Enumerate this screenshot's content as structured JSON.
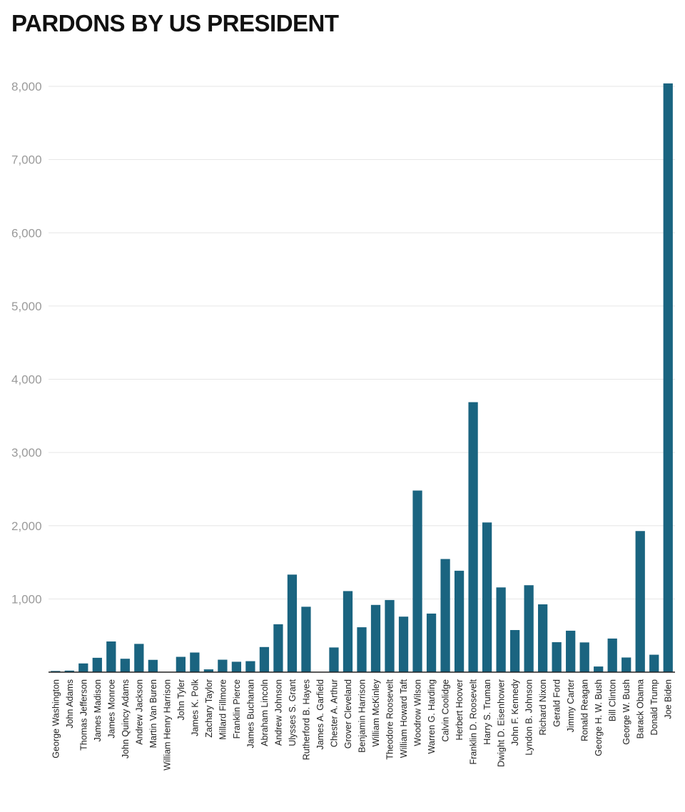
{
  "chart_data": {
    "type": "bar",
    "title": "PARDONS BY US PRESIDENT",
    "xlabel": "",
    "ylabel": "",
    "ylim": [
      0,
      8000
    ],
    "yticks": [
      1000,
      2000,
      3000,
      4000,
      5000,
      6000,
      7000,
      8000
    ],
    "ytick_labels": [
      "1,000",
      "2,000",
      "3,000",
      "4,000",
      "5,000",
      "6,000",
      "7,000",
      "8,000"
    ],
    "grid": true,
    "bar_color": "#1a6480",
    "categories": [
      "George Washington",
      "John Adams",
      "Thomas Jefferson",
      "James Madison",
      "James Monroe",
      "John Quincy Adams",
      "Andrew Jackson",
      "Martin Van Buren",
      "William Henry Harrison",
      "John Tyler",
      "James K. Polk",
      "Zachary Taylor",
      "Millard Fillmore",
      "Franklin Pierce",
      "James Buchanan",
      "Abraham Lincoln",
      "Andrew Johnson",
      "Ulysses S. Grant",
      "Rutherford B. Hayes",
      "James A. Garfield",
      "Chester A. Arthur",
      "Grover Cleveland",
      "Benjamin Harrison",
      "William McKinley",
      "Theodore Roosevelt",
      "William Howard Taft",
      "Woodrow Wilson",
      "Warren G. Harding",
      "Calvin Coolidge",
      "Herbert Hoover",
      "Franklin D. Roosevelt",
      "Harry S. Truman",
      "Dwight D. Eisenhower",
      "John F. Kennedy",
      "Lyndon B. Johnson",
      "Richard Nixon",
      "Gerald Ford",
      "Jimmy Carter",
      "Ronald Reagan",
      "George H. W. Bush",
      "Bill Clinton",
      "George W. Bush",
      "Barack Obama",
      "Donald Trump",
      "Joe Biden"
    ],
    "values": [
      16,
      21,
      119,
      196,
      419,
      183,
      386,
      168,
      0,
      209,
      268,
      38,
      170,
      142,
      150,
      343,
      654,
      1332,
      893,
      0,
      337,
      1107,
      613,
      918,
      985,
      758,
      2480,
      800,
      1545,
      1385,
      3687,
      2044,
      1157,
      575,
      1187,
      926,
      409,
      566,
      406,
      77,
      459,
      200,
      1927,
      238,
      8040
    ]
  }
}
